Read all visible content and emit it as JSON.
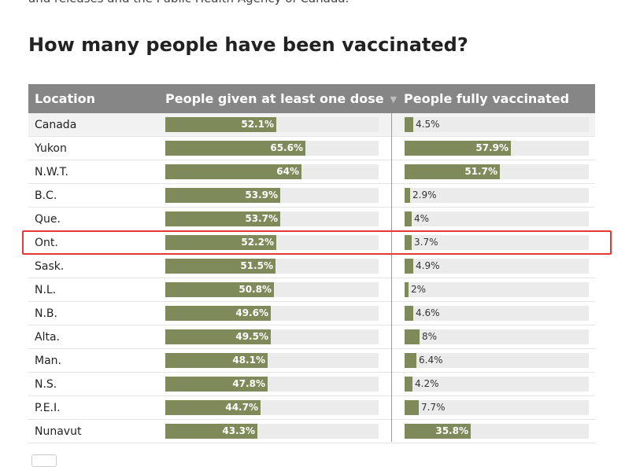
{
  "intro_text": "and releases and the Public Health Agency of Canada.",
  "title": "How many people have been vaccinated?",
  "table": {
    "headers": {
      "location": "Location",
      "one_dose": "People given at least one dose",
      "fully": "People fully vaccinated"
    },
    "sort_icon": "triangle-down-icon",
    "rows": [
      {
        "location": "Canada",
        "one_dose": 52.1,
        "one_dose_label": "52.1%",
        "fully": 4.5,
        "fully_label": "4.5%"
      },
      {
        "location": "Yukon",
        "one_dose": 65.6,
        "one_dose_label": "65.6%",
        "fully": 57.9,
        "fully_label": "57.9%"
      },
      {
        "location": "N.W.T.",
        "one_dose": 64,
        "one_dose_label": "64%",
        "fully": 51.7,
        "fully_label": "51.7%"
      },
      {
        "location": "B.C.",
        "one_dose": 53.9,
        "one_dose_label": "53.9%",
        "fully": 2.9,
        "fully_label": "2.9%"
      },
      {
        "location": "Que.",
        "one_dose": 53.7,
        "one_dose_label": "53.7%",
        "fully": 4,
        "fully_label": "4%"
      },
      {
        "location": "Ont.",
        "one_dose": 52.2,
        "one_dose_label": "52.2%",
        "fully": 3.7,
        "fully_label": "3.7%"
      },
      {
        "location": "Sask.",
        "one_dose": 51.5,
        "one_dose_label": "51.5%",
        "fully": 4.9,
        "fully_label": "4.9%"
      },
      {
        "location": "N.L.",
        "one_dose": 50.8,
        "one_dose_label": "50.8%",
        "fully": 2,
        "fully_label": "2%"
      },
      {
        "location": "N.B.",
        "one_dose": 49.6,
        "one_dose_label": "49.6%",
        "fully": 4.6,
        "fully_label": "4.6%"
      },
      {
        "location": "Alta.",
        "one_dose": 49.5,
        "one_dose_label": "49.5%",
        "fully": 8,
        "fully_label": "8%"
      },
      {
        "location": "Man.",
        "one_dose": 48.1,
        "one_dose_label": "48.1%",
        "fully": 6.4,
        "fully_label": "6.4%"
      },
      {
        "location": "N.S.",
        "one_dose": 47.8,
        "one_dose_label": "47.8%",
        "fully": 4.2,
        "fully_label": "4.2%"
      },
      {
        "location": "P.E.I.",
        "one_dose": 44.7,
        "one_dose_label": "44.7%",
        "fully": 7.7,
        "fully_label": "7.7%"
      },
      {
        "location": "Nunavut",
        "one_dose": 43.3,
        "one_dose_label": "43.3%",
        "fully": 35.8,
        "fully_label": "35.8%"
      }
    ],
    "bar_max_percent": 100,
    "highlighted_location": "Ont."
  },
  "colors": {
    "header_bg": "#868686",
    "bar_fill": "#7f8a5a",
    "bar_track": "#ebebeb",
    "highlight_border": "#e53935"
  }
}
